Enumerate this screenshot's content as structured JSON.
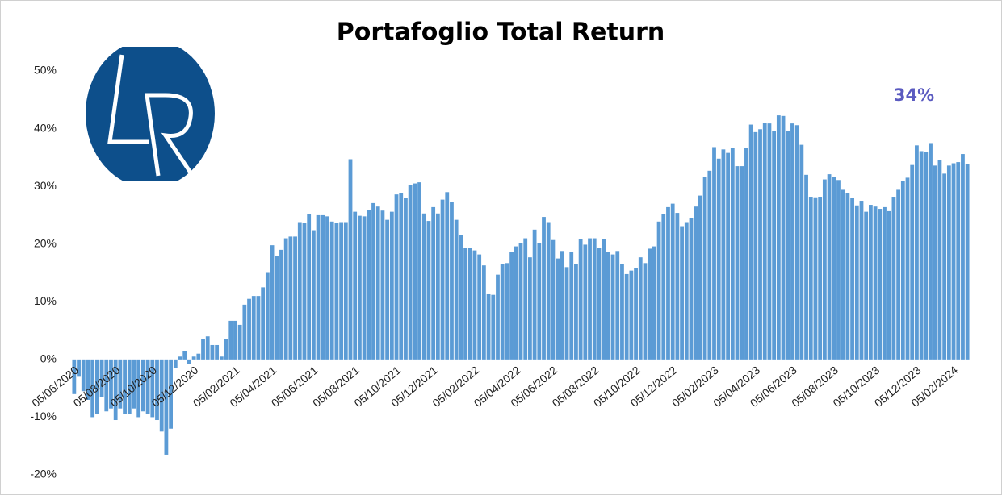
{
  "chart_data": {
    "type": "bar",
    "title": "Portafoglio Total Return",
    "annotation": "34%",
    "color": "#5b9bd5",
    "categories": [
      "05/06/2020",
      null,
      null,
      null,
      null,
      null,
      null,
      null,
      null,
      "05/08/2020",
      null,
      null,
      null,
      null,
      null,
      null,
      null,
      "05/10/2020",
      null,
      null,
      null,
      null,
      null,
      null,
      null,
      null,
      "05/12/2020",
      null,
      null,
      null,
      null,
      null,
      null,
      null,
      null,
      "05/02/2021",
      null,
      null,
      null,
      null,
      null,
      null,
      null,
      "05/04/2021",
      null,
      null,
      null,
      null,
      null,
      null,
      null,
      null,
      "05/06/2021",
      null,
      null,
      null,
      null,
      null,
      null,
      null,
      null,
      "05/08/2021",
      null,
      null,
      null,
      null,
      null,
      null,
      null,
      null,
      "05/10/2021",
      null,
      null,
      null,
      null,
      null,
      null,
      null,
      "05/12/2021",
      null,
      null,
      null,
      null,
      null,
      null,
      null,
      null,
      "05/02/2022",
      null,
      null,
      null,
      null,
      null,
      null,
      null,
      null,
      "05/04/2022",
      null,
      null,
      null,
      null,
      null,
      null,
      null,
      "05/06/2022",
      null,
      null,
      null,
      null,
      null,
      null,
      null,
      null,
      "05/08/2022",
      null,
      null,
      null,
      null,
      null,
      null,
      null,
      null,
      "05/10/2022",
      null,
      null,
      null,
      null,
      null,
      null,
      null,
      "05/12/2022",
      null,
      null,
      null,
      null,
      null,
      null,
      null,
      null,
      "05/02/2023",
      null,
      null,
      null,
      null,
      null,
      null,
      null,
      null,
      "05/04/2023",
      null,
      null,
      null,
      null,
      null,
      null,
      null,
      "05/06/2023",
      null,
      null,
      null,
      null,
      null,
      null,
      null,
      null,
      "05/08/2023",
      null,
      null,
      null,
      null,
      null,
      null,
      null,
      null,
      "05/10/2023",
      null,
      null,
      null,
      null,
      null,
      null,
      null,
      null,
      "05/12/2023",
      null,
      null,
      null,
      null,
      null,
      null,
      null,
      "05/02/2024",
      null,
      null,
      null
    ],
    "values": [
      -6,
      -3,
      -5.5,
      -7,
      -10,
      -9.5,
      -6.5,
      -9,
      -8.5,
      -10.5,
      -8.5,
      -9.5,
      -9.5,
      -8.5,
      -10,
      -9,
      -9.5,
      -10,
      -10.5,
      -12.5,
      -16.5,
      -12,
      -1.5,
      0.5,
      1.5,
      -0.8,
      0.5,
      1,
      3.5,
      4,
      2.5,
      2.5,
      0.5,
      3.5,
      6.7,
      6.7,
      6,
      9.5,
      10.5,
      11,
      11,
      12.5,
      15,
      19.8,
      18,
      19,
      21,
      21.3,
      21.3,
      23.8,
      23.6,
      25.2,
      22.4,
      25,
      25,
      24.8,
      23.9,
      23.7,
      23.8,
      23.8,
      34.7,
      25.6,
      24.9,
      24.8,
      25.9,
      27.1,
      26.5,
      25.8,
      24.2,
      25.6,
      28.6,
      28.8,
      28,
      30.3,
      30.5,
      30.7,
      25.3,
      24,
      26.4,
      25.3,
      27.7,
      29,
      27.3,
      24.2,
      21.5,
      19.4,
      19.4,
      18.9,
      18.2,
      16.3,
      11.3,
      11.2,
      14.7,
      16.5,
      16.7,
      18.6,
      19.6,
      20.2,
      21,
      17.7,
      22.5,
      20.2,
      24.7,
      23.8,
      20.7,
      17.5,
      18.8,
      16,
      18.7,
      16.5,
      20.9,
      19.9,
      21,
      21,
      19.4,
      20.9,
      18.7,
      18.2,
      18.8,
      16.5,
      14.8,
      15.4,
      15.8,
      17.7,
      16.7,
      19.2,
      19.6,
      23.9,
      25.2,
      26.4,
      27,
      25.4,
      23.1,
      23.8,
      24.5,
      26.5,
      28.4,
      31.6,
      32.7,
      36.8,
      34.8,
      36.4,
      35.8,
      36.7,
      33.5,
      33.5,
      36.7,
      40.7,
      39.4,
      39.9,
      41,
      40.9,
      39.6,
      42.3,
      42.2,
      39.6,
      40.9,
      40.6,
      37.2,
      32,
      28.2,
      28.1,
      28.2,
      31.2,
      32.1,
      31.6,
      31.1,
      29.4,
      28.9,
      28,
      26.7,
      27.5,
      25.6,
      26.8,
      26.5,
      26.1,
      26.4,
      25.7,
      28.2,
      29.4,
      30.9,
      31.5,
      33.7,
      37.1,
      36.1,
      36,
      37.5,
      33.6,
      34.5,
      32.2,
      33.6,
      34,
      34.2,
      35.6,
      33.9
    ],
    "ylim": [
      -20,
      50
    ],
    "yticks": [
      {
        "value": -20,
        "label": "-20%"
      },
      {
        "value": -10,
        "label": "-10%"
      },
      {
        "value": 0,
        "label": "0%"
      },
      {
        "value": 10,
        "label": "10%"
      },
      {
        "value": 20,
        "label": "20%"
      },
      {
        "value": 30,
        "label": "30%"
      },
      {
        "value": 40,
        "label": "40%"
      },
      {
        "value": 50,
        "label": "50%"
      }
    ],
    "grid": false
  }
}
